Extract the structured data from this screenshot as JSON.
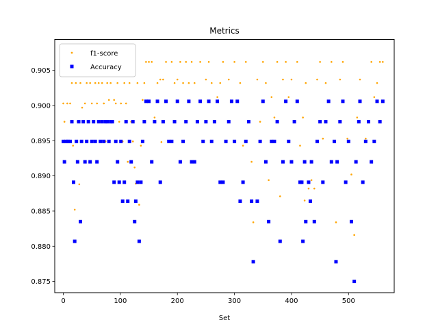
{
  "chart_data": {
    "type": "scatter",
    "title": "Metrics",
    "xlabel": "Set",
    "ylabel": "",
    "xlim": [
      -15,
      580
    ],
    "ylim": [
      0.8734,
      0.9094
    ],
    "xticks": [
      0,
      100,
      200,
      300,
      400,
      500
    ],
    "xtick_labels": [
      "0",
      "100",
      "200",
      "300",
      "400",
      "500"
    ],
    "yticks": [
      0.875,
      0.88,
      0.885,
      0.89,
      0.895,
      0.9,
      0.905
    ],
    "ytick_labels": [
      "0.875",
      "0.880",
      "0.885",
      "0.890",
      "0.895",
      "0.900",
      "0.905"
    ],
    "grid": false,
    "legend_position": "top-left",
    "series": [
      {
        "name": "f1-score",
        "color": "#ffa500",
        "marker": "dot",
        "points": [
          [
            0,
            0.9003
          ],
          [
            2,
            0.8977
          ],
          [
            4,
            0.8948
          ],
          [
            7,
            0.9003
          ],
          [
            10,
            0.8949
          ],
          [
            12,
            0.9003
          ],
          [
            15,
            0.9032
          ],
          [
            17,
            0.8943
          ],
          [
            20,
            0.8852
          ],
          [
            22,
            0.9032
          ],
          [
            25,
            0.8977
          ],
          [
            28,
            0.8888
          ],
          [
            30,
            0.9032
          ],
          [
            33,
            0.8997
          ],
          [
            35,
            0.8977
          ],
          [
            38,
            0.9003
          ],
          [
            41,
            0.9032
          ],
          [
            44,
            0.8977
          ],
          [
            47,
            0.9032
          ],
          [
            50,
            0.9003
          ],
          [
            53,
            0.8977
          ],
          [
            56,
            0.9032
          ],
          [
            59,
            0.9003
          ],
          [
            62,
            0.9032
          ],
          [
            65,
            0.8977
          ],
          [
            68,
            0.9032
          ],
          [
            71,
            0.9003
          ],
          [
            74,
            0.8949
          ],
          [
            77,
            0.9032
          ],
          [
            80,
            0.9008
          ],
          [
            83,
            0.9032
          ],
          [
            86,
            0.8977
          ],
          [
            89,
            0.9008
          ],
          [
            92,
            0.9003
          ],
          [
            95,
            0.9032
          ],
          [
            98,
            0.8977
          ],
          [
            101,
            0.9003
          ],
          [
            104,
            0.8949
          ],
          [
            107,
            0.9032
          ],
          [
            110,
            0.9003
          ],
          [
            113,
            0.892
          ],
          [
            116,
            0.9032
          ],
          [
            119,
            0.8977
          ],
          [
            122,
            0.8949
          ],
          [
            125,
            0.8912
          ],
          [
            127,
            0.8889
          ],
          [
            130,
            0.9032
          ],
          [
            133,
            0.8859
          ],
          [
            136,
            0.8943
          ],
          [
            139,
            0.9008
          ],
          [
            142,
            0.9032
          ],
          [
            145,
            0.9062
          ],
          [
            150,
            0.9062
          ],
          [
            155,
            0.9062
          ],
          [
            160,
            0.8983
          ],
          [
            165,
            0.9032
          ],
          [
            170,
            0.9037
          ],
          [
            172,
            0.8948
          ],
          [
            175,
            0.9037
          ],
          [
            180,
            0.9062
          ],
          [
            190,
            0.9062
          ],
          [
            195,
            0.9032
          ],
          [
            200,
            0.9037
          ],
          [
            205,
            0.9062
          ],
          [
            210,
            0.9032
          ],
          [
            215,
            0.9062
          ],
          [
            220,
            0.9032
          ],
          [
            225,
            0.9062
          ],
          [
            230,
            0.9032
          ],
          [
            240,
            0.9062
          ],
          [
            250,
            0.9037
          ],
          [
            255,
            0.9062
          ],
          [
            260,
            0.9032
          ],
          [
            270,
            0.9012
          ],
          [
            275,
            0.9032
          ],
          [
            280,
            0.9062
          ],
          [
            290,
            0.9037
          ],
          [
            300,
            0.9062
          ],
          [
            310,
            0.9032
          ],
          [
            315,
            0.8943
          ],
          [
            320,
            0.9062
          ],
          [
            330,
            0.892
          ],
          [
            333,
            0.8834
          ],
          [
            340,
            0.9037
          ],
          [
            345,
            0.8977
          ],
          [
            350,
            0.9062
          ],
          [
            355,
            0.9032
          ],
          [
            360,
            0.8894
          ],
          [
            365,
            0.9012
          ],
          [
            370,
            0.8983
          ],
          [
            375,
            0.9062
          ],
          [
            380,
            0.8871
          ],
          [
            385,
            0.9037
          ],
          [
            390,
            0.9062
          ],
          [
            395,
            0.9012
          ],
          [
            400,
            0.9037
          ],
          [
            405,
            0.8977
          ],
          [
            410,
            0.9062
          ],
          [
            415,
            0.8943
          ],
          [
            420,
            0.8983
          ],
          [
            423,
            0.8865
          ],
          [
            425,
            0.9032
          ],
          [
            430,
            0.8882
          ],
          [
            435,
            0.8894
          ],
          [
            440,
            0.8882
          ],
          [
            445,
            0.9037
          ],
          [
            450,
            0.9062
          ],
          [
            455,
            0.8953
          ],
          [
            460,
            0.9032
          ],
          [
            470,
            0.9062
          ],
          [
            478,
            0.8834
          ],
          [
            485,
            0.9037
          ],
          [
            490,
            0.9062
          ],
          [
            498,
            0.8953
          ],
          [
            505,
            0.8902
          ],
          [
            510,
            0.8816
          ],
          [
            515,
            0.8983
          ],
          [
            520,
            0.9037
          ],
          [
            530,
            0.8953
          ],
          [
            540,
            0.9062
          ],
          [
            545,
            0.9012
          ],
          [
            550,
            0.9032
          ],
          [
            555,
            0.9062
          ],
          [
            560,
            0.9062
          ]
        ]
      },
      {
        "name": "Accuracy",
        "color": "#0000ff",
        "marker": "square",
        "points": [
          [
            0,
            0.8949
          ],
          [
            2,
            0.892
          ],
          [
            5,
            0.8949
          ],
          [
            8,
            0.8949
          ],
          [
            12,
            0.8949
          ],
          [
            15,
            0.8977
          ],
          [
            18,
            0.8891
          ],
          [
            20,
            0.8807
          ],
          [
            23,
            0.8949
          ],
          [
            25,
            0.892
          ],
          [
            27,
            0.8977
          ],
          [
            30,
            0.8835
          ],
          [
            32,
            0.8949
          ],
          [
            35,
            0.8977
          ],
          [
            38,
            0.892
          ],
          [
            41,
            0.8949
          ],
          [
            44,
            0.8977
          ],
          [
            47,
            0.892
          ],
          [
            50,
            0.8949
          ],
          [
            53,
            0.8977
          ],
          [
            56,
            0.8949
          ],
          [
            59,
            0.892
          ],
          [
            62,
            0.8977
          ],
          [
            65,
            0.8949
          ],
          [
            68,
            0.8977
          ],
          [
            71,
            0.8949
          ],
          [
            74,
            0.8977
          ],
          [
            77,
            0.8977
          ],
          [
            80,
            0.8949
          ],
          [
            83,
            0.8977
          ],
          [
            86,
            0.8977
          ],
          [
            89,
            0.8891
          ],
          [
            92,
            0.8949
          ],
          [
            95,
            0.892
          ],
          [
            98,
            0.8891
          ],
          [
            101,
            0.8949
          ],
          [
            104,
            0.8864
          ],
          [
            107,
            0.8891
          ],
          [
            110,
            0.8977
          ],
          [
            113,
            0.8864
          ],
          [
            116,
            0.8949
          ],
          [
            119,
            0.892
          ],
          [
            122,
            0.8977
          ],
          [
            125,
            0.8835
          ],
          [
            127,
            0.8864
          ],
          [
            130,
            0.8891
          ],
          [
            133,
            0.8807
          ],
          [
            136,
            0.8891
          ],
          [
            139,
            0.8949
          ],
          [
            142,
            0.8977
          ],
          [
            145,
            0.9006
          ],
          [
            150,
            0.9006
          ],
          [
            155,
            0.892
          ],
          [
            160,
            0.8977
          ],
          [
            165,
            0.9006
          ],
          [
            170,
            0.8891
          ],
          [
            175,
            0.8977
          ],
          [
            180,
            0.9006
          ],
          [
            185,
            0.8949
          ],
          [
            190,
            0.8949
          ],
          [
            195,
            0.8977
          ],
          [
            200,
            0.9006
          ],
          [
            205,
            0.892
          ],
          [
            210,
            0.8949
          ],
          [
            215,
            0.8977
          ],
          [
            220,
            0.9006
          ],
          [
            225,
            0.892
          ],
          [
            230,
            0.892
          ],
          [
            235,
            0.8977
          ],
          [
            240,
            0.9006
          ],
          [
            245,
            0.8949
          ],
          [
            250,
            0.8977
          ],
          [
            255,
            0.9006
          ],
          [
            260,
            0.8949
          ],
          [
            265,
            0.8977
          ],
          [
            270,
            0.9006
          ],
          [
            275,
            0.8891
          ],
          [
            280,
            0.8891
          ],
          [
            285,
            0.8949
          ],
          [
            290,
            0.8977
          ],
          [
            295,
            0.9006
          ],
          [
            300,
            0.8949
          ],
          [
            305,
            0.9006
          ],
          [
            310,
            0.8864
          ],
          [
            315,
            0.8891
          ],
          [
            320,
            0.8949
          ],
          [
            325,
            0.8977
          ],
          [
            330,
            0.8864
          ],
          [
            333,
            0.8778
          ],
          [
            340,
            0.8864
          ],
          [
            345,
            0.8949
          ],
          [
            350,
            0.9006
          ],
          [
            355,
            0.892
          ],
          [
            360,
            0.8835
          ],
          [
            365,
            0.8949
          ],
          [
            370,
            0.8949
          ],
          [
            375,
            0.8977
          ],
          [
            380,
            0.8807
          ],
          [
            385,
            0.892
          ],
          [
            390,
            0.9006
          ],
          [
            395,
            0.8949
          ],
          [
            400,
            0.892
          ],
          [
            405,
            0.8977
          ],
          [
            410,
            0.9006
          ],
          [
            415,
            0.8891
          ],
          [
            418,
            0.8891
          ],
          [
            420,
            0.8807
          ],
          [
            423,
            0.892
          ],
          [
            425,
            0.8835
          ],
          [
            430,
            0.8891
          ],
          [
            433,
            0.8864
          ],
          [
            435,
            0.892
          ],
          [
            440,
            0.8835
          ],
          [
            445,
            0.8949
          ],
          [
            450,
            0.8977
          ],
          [
            455,
            0.8891
          ],
          [
            460,
            0.8977
          ],
          [
            465,
            0.9006
          ],
          [
            470,
            0.892
          ],
          [
            475,
            0.8949
          ],
          [
            478,
            0.8778
          ],
          [
            480,
            0.892
          ],
          [
            485,
            0.8977
          ],
          [
            490,
            0.9006
          ],
          [
            495,
            0.8891
          ],
          [
            500,
            0.8949
          ],
          [
            505,
            0.8835
          ],
          [
            510,
            0.875
          ],
          [
            513,
            0.892
          ],
          [
            518,
            0.8977
          ],
          [
            520,
            0.9006
          ],
          [
            525,
            0.8891
          ],
          [
            530,
            0.8949
          ],
          [
            535,
            0.8977
          ],
          [
            540,
            0.892
          ],
          [
            545,
            0.8949
          ],
          [
            550,
            0.9006
          ],
          [
            555,
            0.8977
          ],
          [
            560,
            0.9006
          ]
        ]
      }
    ]
  }
}
